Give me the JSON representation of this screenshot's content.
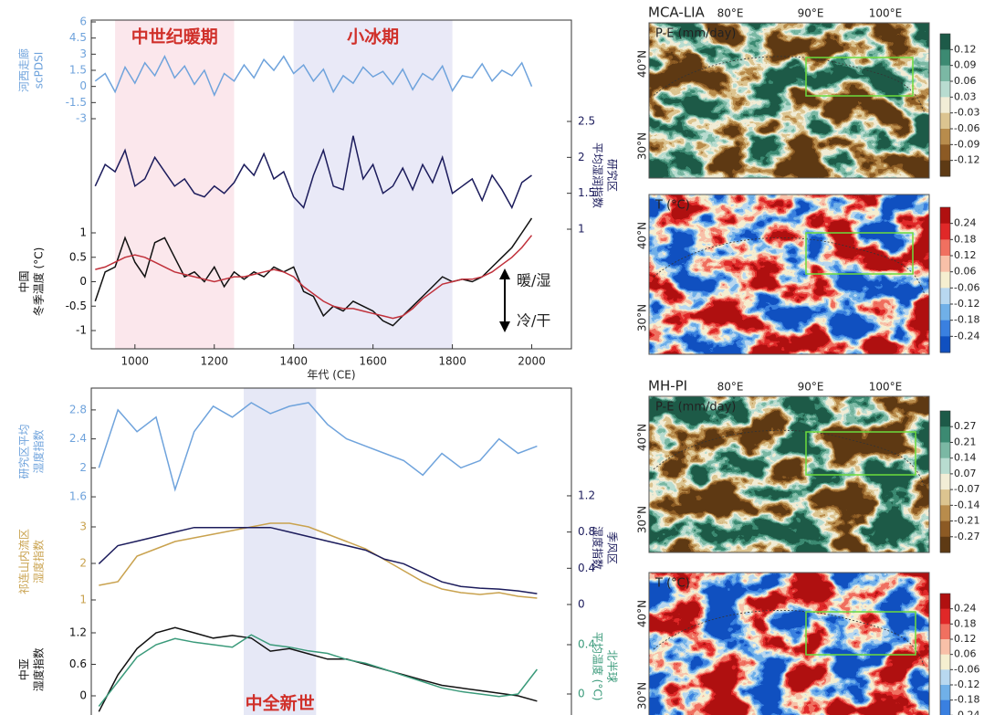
{
  "chart_data": [
    {
      "type": "line",
      "xlabel": "年代 (CE)",
      "xlim": [
        890,
        2100
      ],
      "xticks": [
        1000,
        1200,
        1400,
        1600,
        1800,
        2000
      ],
      "spans": [
        {
          "label": "中世纪暖期",
          "range": [
            950,
            1250
          ],
          "color": "#fbe7ec"
        },
        {
          "label": "小冰期",
          "range": [
            1400,
            1800
          ],
          "color": "#e9e9f7"
        }
      ],
      "annotations": [
        "暖/湿",
        "冷/干"
      ],
      "x": [
        900,
        925,
        950,
        975,
        1000,
        1025,
        1050,
        1075,
        1100,
        1125,
        1150,
        1175,
        1200,
        1225,
        1250,
        1275,
        1300,
        1325,
        1350,
        1375,
        1400,
        1425,
        1450,
        1475,
        1500,
        1525,
        1550,
        1575,
        1600,
        1625,
        1650,
        1675,
        1700,
        1725,
        1750,
        1775,
        1800,
        1825,
        1850,
        1875,
        1900,
        1925,
        1950,
        1975,
        2000
      ],
      "panels": [
        {
          "ylabel": [
            "河西走廊",
            "scPDSI"
          ],
          "ylim": [
            -3,
            6
          ],
          "yticks": [
            -3,
            -1.5,
            0,
            1.5,
            3,
            4.5,
            6
          ],
          "series": [
            {
              "color": "#6fa3dc",
              "values": [
                0.5,
                1.2,
                -0.5,
                1.8,
                0.3,
                2.2,
                1.0,
                2.8,
                0.8,
                1.9,
                0.2,
                1.5,
                -0.8,
                1.2,
                0.5,
                2.0,
                0.8,
                2.5,
                1.5,
                2.8,
                1.2,
                2.0,
                0.5,
                1.6,
                -0.5,
                1.0,
                0.3,
                1.8,
                0.9,
                1.4,
                0.2,
                1.6,
                -0.3,
                1.2,
                0.6,
                1.9,
                -0.4,
                1.0,
                0.8,
                2.1,
                0.5,
                1.5,
                1.0,
                2.2,
                0.0
              ]
            }
          ]
        },
        {
          "y2label": [
            "研究区",
            "平均湿润指数"
          ],
          "y2lim": [
            1,
            2.5
          ],
          "y2ticks": [
            1,
            1.5,
            2,
            2.5
          ],
          "series": [
            {
              "color": "#1c1c5c",
              "axis": "y2",
              "values": [
                1.6,
                1.9,
                1.8,
                2.1,
                1.6,
                1.7,
                2.0,
                1.8,
                1.6,
                1.7,
                1.5,
                1.45,
                1.6,
                1.5,
                1.65,
                1.9,
                1.75,
                2.05,
                1.7,
                1.8,
                1.45,
                1.3,
                1.75,
                2.1,
                1.6,
                1.55,
                2.3,
                1.7,
                1.9,
                1.5,
                1.6,
                1.85,
                1.55,
                1.9,
                1.65,
                2.0,
                1.5,
                1.6,
                1.7,
                1.4,
                1.75,
                1.55,
                1.3,
                1.65,
                1.75
              ]
            }
          ]
        },
        {
          "ylabel": [
            "中国",
            "冬季温度 (°C)"
          ],
          "ylim": [
            -1,
            1
          ],
          "yticks": [
            -1,
            -0.5,
            0,
            0.5,
            1
          ],
          "series": [
            {
              "color": "#111111",
              "values": [
                -0.4,
                0.2,
                0.3,
                0.9,
                0.4,
                0.1,
                0.8,
                0.9,
                0.5,
                0.1,
                0.2,
                0.0,
                0.3,
                -0.1,
                0.2,
                0.05,
                0.2,
                0.1,
                0.3,
                0.2,
                0.3,
                -0.2,
                -0.3,
                -0.7,
                -0.5,
                -0.6,
                -0.4,
                -0.5,
                -0.6,
                -0.8,
                -0.9,
                -0.7,
                -0.5,
                -0.3,
                -0.1,
                0.1,
                0.0,
                0.05,
                0.0,
                0.1,
                0.3,
                0.5,
                0.7,
                1.0,
                1.3
              ]
            },
            {
              "color": "#c0303a",
              "values": [
                0.25,
                0.3,
                0.4,
                0.5,
                0.55,
                0.5,
                0.4,
                0.3,
                0.2,
                0.15,
                0.1,
                0.05,
                0.0,
                0.05,
                0.1,
                0.1,
                0.15,
                0.2,
                0.25,
                0.2,
                0.1,
                -0.1,
                -0.25,
                -0.4,
                -0.5,
                -0.55,
                -0.55,
                -0.6,
                -0.65,
                -0.7,
                -0.75,
                -0.7,
                -0.55,
                -0.35,
                -0.2,
                -0.05,
                0.0,
                0.05,
                0.05,
                0.1,
                0.2,
                0.35,
                0.5,
                0.7,
                0.95
              ]
            }
          ]
        }
      ]
    },
    {
      "type": "line",
      "xlim": [
        11.7,
        -0.9
      ],
      "spans": [
        {
          "label": "中全新世",
          "range": [
            7.7,
            5.8
          ],
          "color": "#e6e8f6"
        }
      ],
      "x": [
        11.5,
        11,
        10.5,
        10,
        9.5,
        9,
        8.5,
        8,
        7.5,
        7,
        6.5,
        6,
        5.5,
        5,
        4.5,
        4,
        3.5,
        3,
        2.5,
        2,
        1.5,
        1,
        0.5,
        0
      ],
      "panels": [
        {
          "ylabel": [
            "研究区平均",
            "湿度指数"
          ],
          "ylim": [
            1.5,
            2.95
          ],
          "yticks": [
            1.6,
            2,
            2.4,
            2.8
          ],
          "series": [
            {
              "color": "#6fa3dc",
              "values": [
                2.0,
                2.8,
                2.5,
                2.7,
                1.7,
                2.5,
                2.85,
                2.7,
                2.9,
                2.75,
                2.85,
                2.9,
                2.6,
                2.4,
                2.3,
                2.2,
                2.1,
                1.9,
                2.2,
                2.0,
                2.1,
                2.4,
                2.2,
                2.3
              ]
            }
          ]
        },
        {
          "ylabel": [
            "祁连山内流区",
            "湿度指数"
          ],
          "ylim": [
            0.8,
            3.3
          ],
          "yticks": [
            1,
            2,
            3
          ],
          "y2label": [
            "季风区",
            "湿度指数"
          ],
          "y2lim": [
            0,
            1.25
          ],
          "y2ticks": [
            0,
            0.4,
            0.8,
            1.2
          ],
          "series": [
            {
              "color": "#c9a24e",
              "values": [
                1.4,
                1.5,
                2.2,
                2.4,
                2.6,
                2.7,
                2.8,
                2.9,
                3.0,
                3.1,
                3.1,
                3.0,
                2.8,
                2.6,
                2.4,
                2.1,
                1.8,
                1.5,
                1.3,
                1.2,
                1.15,
                1.2,
                1.1,
                1.05
              ]
            },
            {
              "color": "#1c1c5c",
              "axis": "y2",
              "values": [
                0.45,
                0.65,
                0.7,
                0.75,
                0.8,
                0.85,
                0.85,
                0.85,
                0.85,
                0.85,
                0.8,
                0.75,
                0.7,
                0.65,
                0.6,
                0.5,
                0.45,
                0.35,
                0.25,
                0.2,
                0.18,
                0.17,
                0.15,
                0.12
              ]
            }
          ]
        },
        {
          "ylabel": [
            "中亚",
            "湿度指数"
          ],
          "ylim": [
            -0.4,
            1.4
          ],
          "yticks": [
            0,
            0.6,
            1.2
          ],
          "y2label": [
            "北半球",
            "平均温度 (°C)"
          ],
          "y2lim": [
            -0.1,
            0.55
          ],
          "y2ticks": [
            0,
            0.4
          ],
          "series": [
            {
              "color": "#111111",
              "values": [
                -0.3,
                0.4,
                0.9,
                1.2,
                1.3,
                1.2,
                1.1,
                1.15,
                1.1,
                0.85,
                0.9,
                0.8,
                0.7,
                0.7,
                0.6,
                0.5,
                0.4,
                0.3,
                0.2,
                0.15,
                0.1,
                0.05,
                0.0,
                -0.1
              ]
            },
            {
              "color": "#3a9a7a",
              "axis": "y2",
              "values": [
                -0.1,
                0.1,
                0.3,
                0.4,
                0.45,
                0.42,
                0.4,
                0.38,
                0.48,
                0.4,
                0.38,
                0.35,
                0.33,
                0.28,
                0.25,
                0.2,
                0.15,
                0.1,
                0.05,
                0.02,
                0.0,
                -0.02,
                0.0,
                0.2
              ]
            }
          ]
        }
      ]
    }
  ],
  "maps": [
    {
      "title": "MCA-LIA",
      "lon_labels": [
        "80°E",
        "90°E",
        "100°E"
      ],
      "variable": "P-E (mm/day)",
      "lat_labels": [
        "40°N",
        "30°N"
      ],
      "colorbar_ticks": [
        0.12,
        0.09,
        0.06,
        0.03,
        -0.03,
        -0.06,
        -0.09,
        -0.12
      ],
      "colors": [
        "#1d5a48",
        "#3c8a72",
        "#7bb8a4",
        "#b8dcd0",
        "#f2edd6",
        "#dcc490",
        "#b88c4c",
        "#8c5a24",
        "#5e3a14"
      ]
    },
    {
      "variable": "T (°C)",
      "lat_labels": [
        "40°N",
        "30°N"
      ],
      "colorbar_ticks": [
        0.24,
        0.18,
        0.12,
        0.06,
        -0.06,
        -0.12,
        -0.18,
        -0.24
      ],
      "colors": [
        "#b01010",
        "#e02828",
        "#f07060",
        "#f8c0a8",
        "#f5efd0",
        "#b8d8f0",
        "#70b0e8",
        "#3a80e0",
        "#1050c0"
      ]
    },
    {
      "title": "MH-PI",
      "lon_labels": [
        "80°E",
        "90°E",
        "100°E"
      ],
      "variable": "P-E (mm/day)",
      "lat_labels": [
        "40°N",
        "30°N"
      ],
      "colorbar_ticks": [
        0.27,
        0.21,
        0.14,
        0.07,
        -0.07,
        -0.14,
        -0.21,
        -0.27
      ],
      "colors": [
        "#1d5a48",
        "#3c8a72",
        "#7bb8a4",
        "#b8dcd0",
        "#f2edd6",
        "#dcc490",
        "#b88c4c",
        "#8c5a24",
        "#5e3a14"
      ]
    },
    {
      "variable": "T (°C)",
      "lat_labels": [
        "40°N",
        "30°N"
      ],
      "colorbar_ticks": [
        0.24,
        0.18,
        0.12,
        0.06,
        -0.06,
        -0.12,
        -0.18,
        -0.24
      ],
      "colors": [
        "#b01010",
        "#e02828",
        "#f07060",
        "#f8c0a8",
        "#f5efd0",
        "#b8d8f0",
        "#70b0e8",
        "#3a80e0",
        "#1050c0"
      ]
    }
  ]
}
